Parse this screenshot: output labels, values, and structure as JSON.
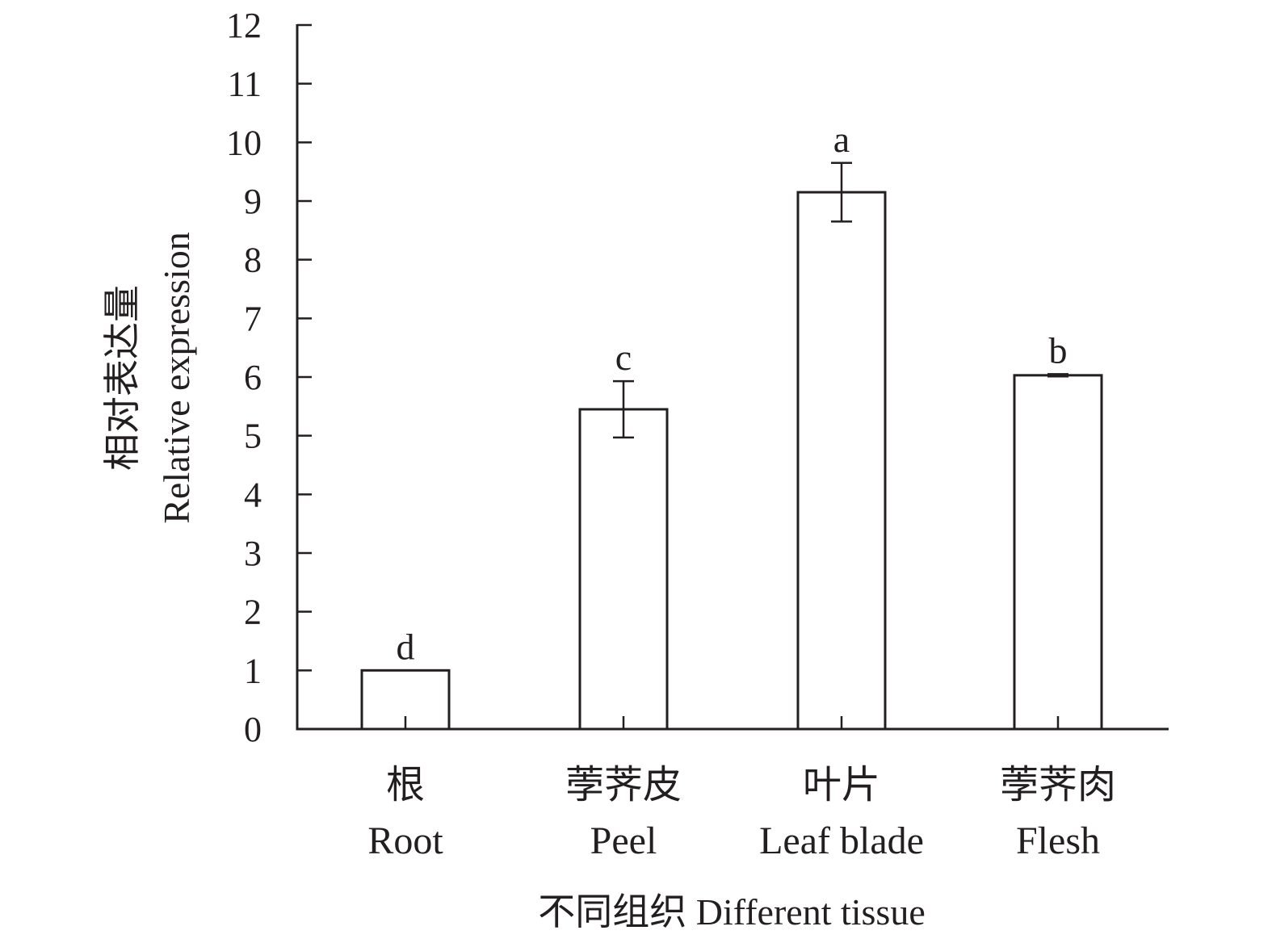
{
  "chart_data": {
    "type": "bar",
    "categories": [
      {
        "zh": "根",
        "en": "Root"
      },
      {
        "zh": "荸荠皮",
        "en": "Peel"
      },
      {
        "zh": "叶片",
        "en": "Leaf blade"
      },
      {
        "zh": "荸荠肉",
        "en": "Flesh"
      }
    ],
    "values": [
      1.0,
      5.45,
      9.15,
      6.03
    ],
    "errors": [
      0.0,
      0.48,
      0.5,
      0.02
    ],
    "significance": [
      "d",
      "c",
      "a",
      "b"
    ],
    "ylabel_zh": "相对表达量",
    "ylabel_en": "Relative expression",
    "xlabel": "不同组织 Different tissue",
    "ylim": [
      0,
      12
    ],
    "yticks": [
      "0",
      "1",
      "2",
      "3",
      "4",
      "5",
      "6",
      "7",
      "8",
      "9",
      "10",
      "11",
      "12"
    ],
    "bar_fill": "#ffffff",
    "line_color": "#231f20",
    "grid": false,
    "legend": "none"
  }
}
